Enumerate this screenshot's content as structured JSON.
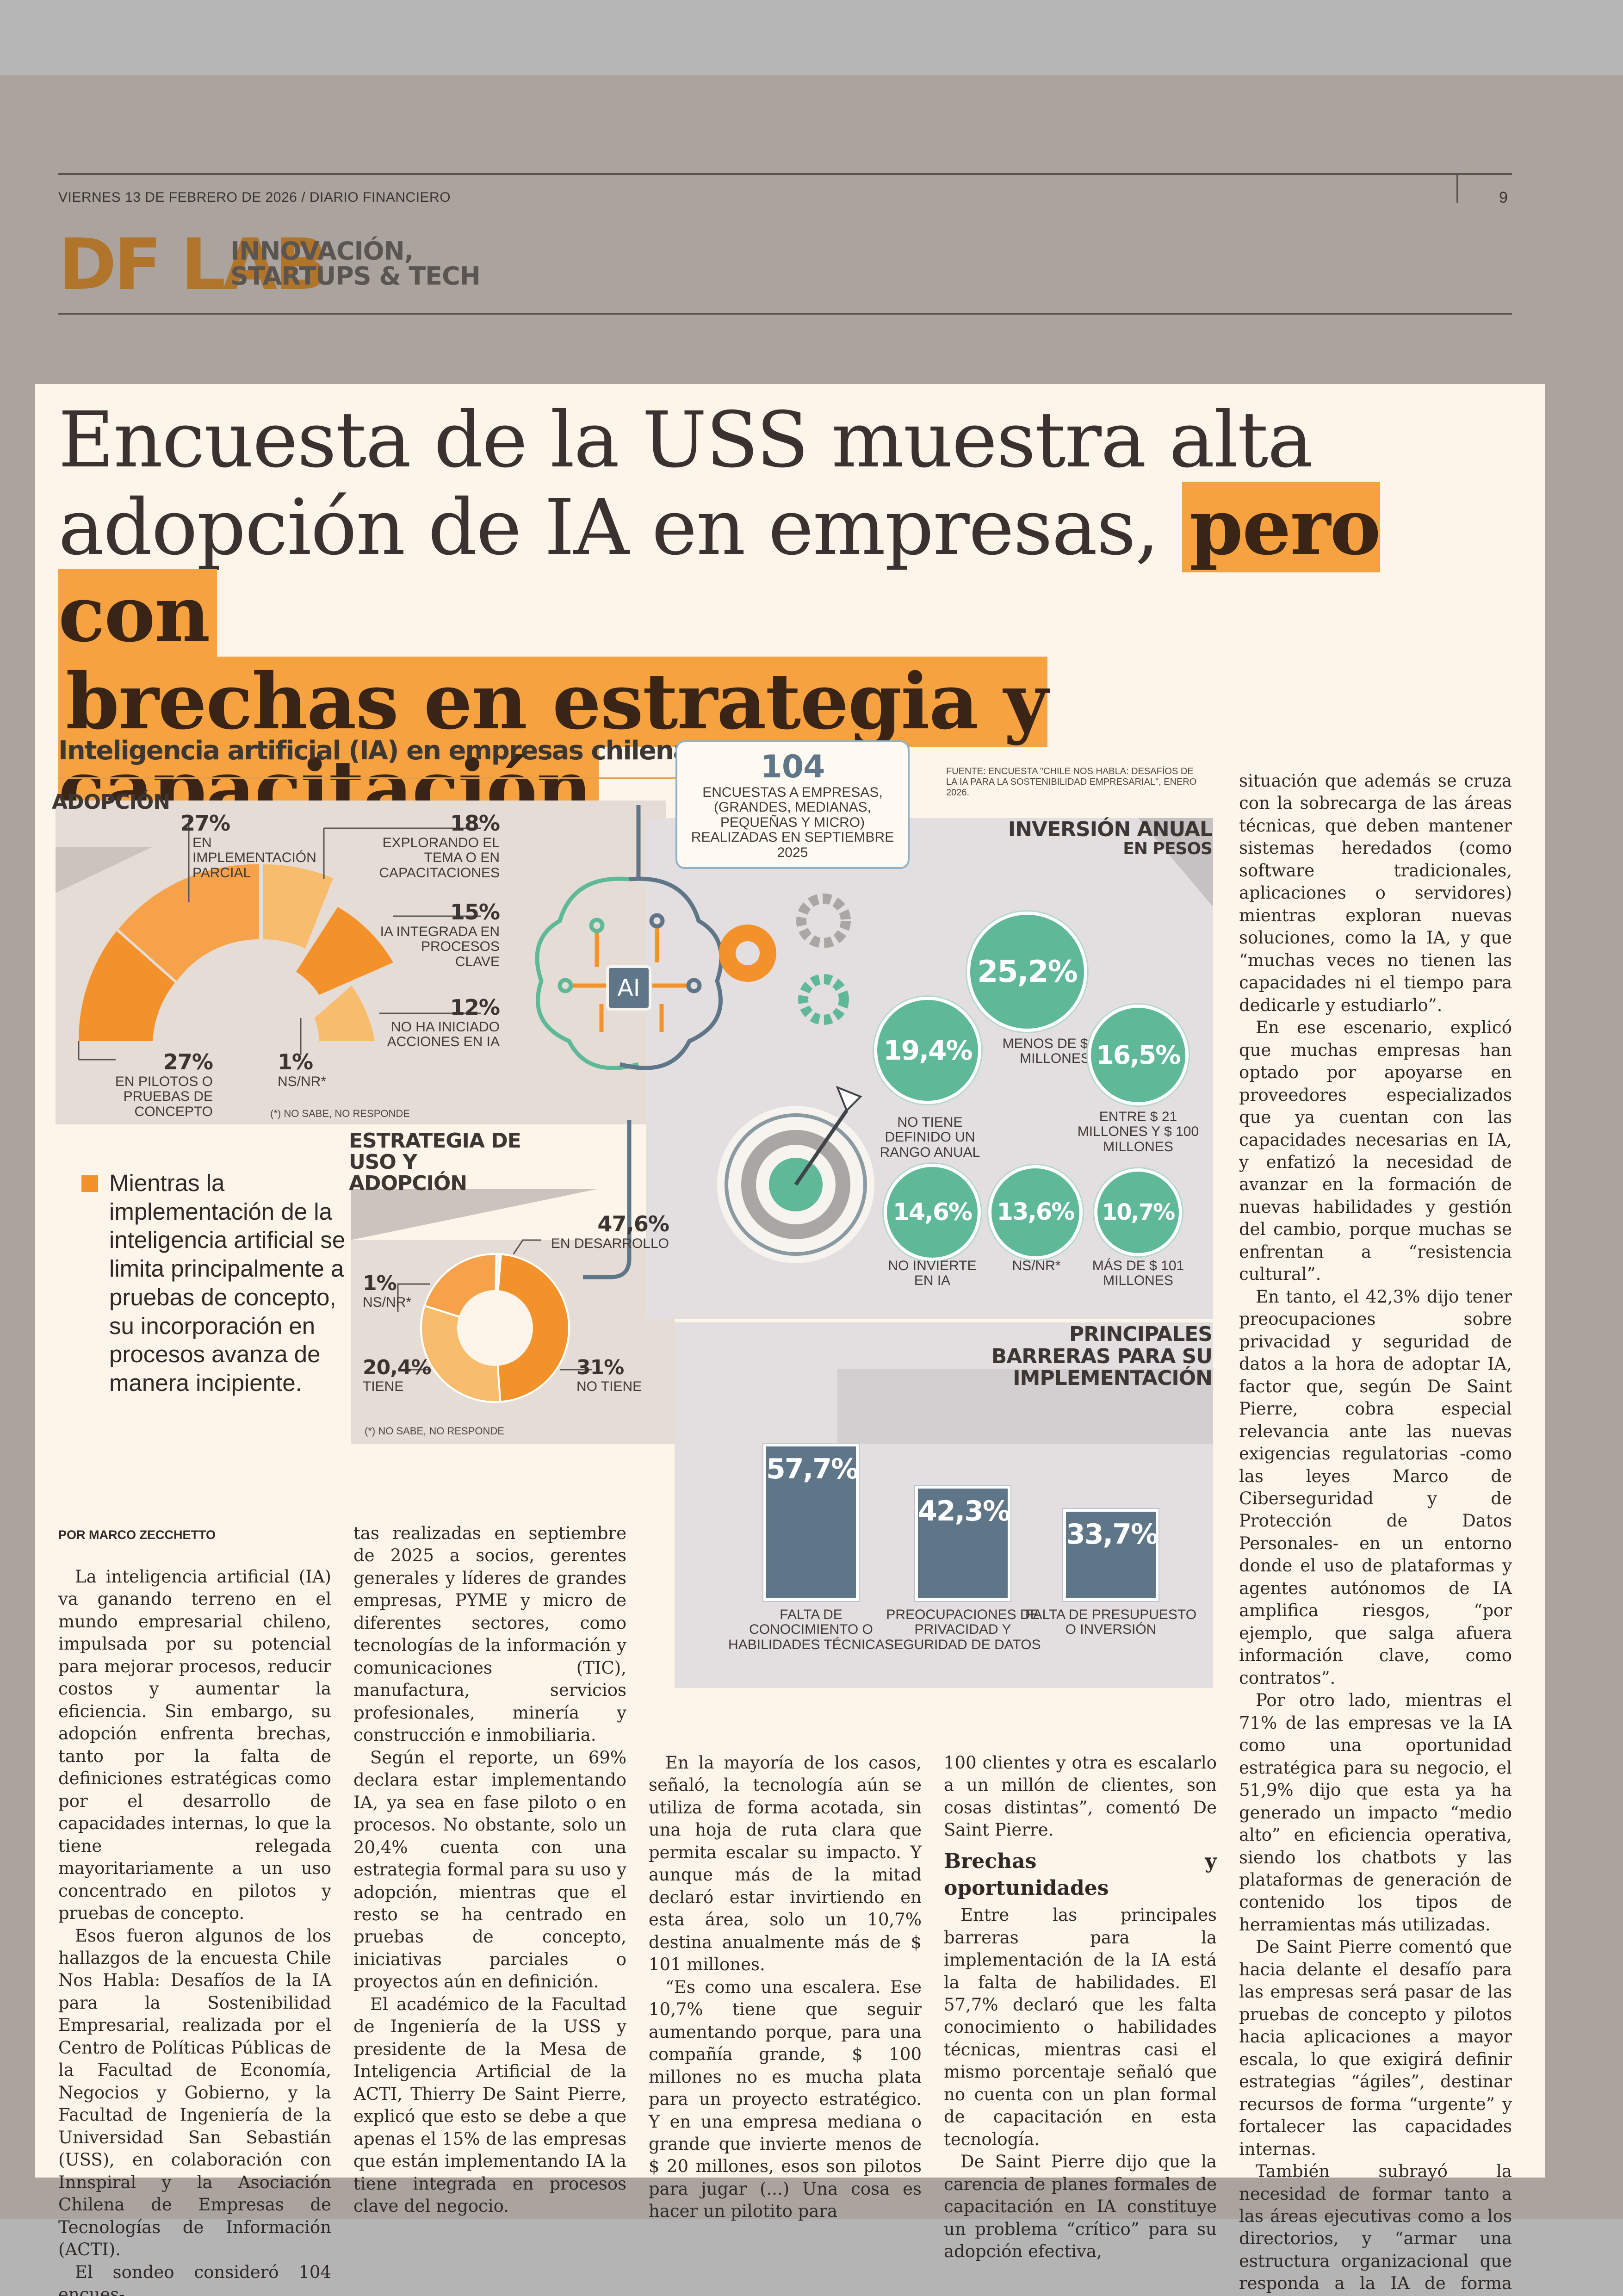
{
  "header": {
    "dateline": "VIERNES 13 DE FEBRERO DE 2026 / DIARIO FINANCIERO",
    "page_number": "9",
    "brand": "DF LAB",
    "section_line1": "INNOVACIÓN,",
    "section_line2": "STARTUPS & TECH"
  },
  "headline": {
    "part1": "Encuesta de la USS muestra alta adopción de IA en empresas,",
    "highlight1": "pero con",
    "highlight2": "brechas en estrategia y capacitación"
  },
  "figure": {
    "title": "Inteligencia artificial (IA) en empresas chilenas",
    "survey_count": "104",
    "survey_desc": "ENCUESTAS A EMPRESAS, (GRANDES, MEDIANAS, PEQUEÑAS Y MICRO) REALIZADAS EN SEPTIEMBRE 2025",
    "source": "FUENTE: ENCUESTA \"CHILE NOS HABLA: DESAFÍOS DE LA IA PARA LA SOSTENIBILIDAD EMPRESARIAL\", ENERO 2026.",
    "ai_chip": "AI",
    "colors": {
      "orange": "#f3922b",
      "teal": "#5fb999",
      "slate": "#5e7687",
      "highlight": "#f6a241"
    }
  },
  "chart_data": [
    {
      "type": "pie",
      "title": "ADOPCIÓN",
      "style": "semicircle",
      "labels": [
        "EN PILOTOS O PRUEBAS DE CONCEPTO",
        "EN IMPLEMENTACIÓN PARCIAL",
        "EXPLORANDO EL TEMA O EN CAPACITACIONES",
        "IA INTEGRADA EN PROCESOS CLAVE",
        "NO HA INICIADO ACCIONES EN IA",
        "NS/NR*"
      ],
      "values": [
        27,
        27,
        18,
        15,
        12,
        1
      ],
      "value_labels": [
        "27%",
        "27%",
        "18%",
        "15%",
        "12%",
        "1%"
      ],
      "footnote": "(*) NO SABE, NO RESPONDE"
    },
    {
      "type": "pie",
      "title": "ESTRATEGIA DE USO Y ADOPCIÓN",
      "style": "donut",
      "labels": [
        "EN DESARROLLO",
        "NO TIENE",
        "TIENE",
        "NS/NR*"
      ],
      "values": [
        47.6,
        31,
        20.4,
        1
      ],
      "value_labels": [
        "47,6%",
        "31%",
        "20,4%",
        "1%"
      ],
      "footnote": "(*) NO SABE, NO RESPONDE"
    },
    {
      "type": "scatter",
      "style": "bubbles",
      "title": "INVERSIÓN ANUAL",
      "subtitle": "EN PESOS",
      "labels": [
        "MENOS DE $ 20 MILLONES",
        "NO TIENE DEFINIDO UN RANGO ANUAL",
        "ENTRE $ 21 MILLONES Y $ 100 MILLONES",
        "NO INVIERTE EN IA",
        "NS/NR*",
        "MÁS DE $ 101 MILLONES"
      ],
      "values": [
        25.2,
        19.4,
        16.5,
        14.6,
        13.6,
        10.7
      ],
      "value_labels": [
        "25,2%",
        "19,4%",
        "16,5%",
        "14,6%",
        "13,6%",
        "10,7%"
      ]
    },
    {
      "type": "bar",
      "title": "PRINCIPALES BARRERAS PARA SU IMPLEMENTACIÓN",
      "categories": [
        "FALTA DE CONOCIMIENTO O HABILIDADES TÉCNICAS",
        "PREOCUPACIONES DE PRIVACIDAD Y SEGURIDAD DE DATOS",
        "FALTA DE PRESUPUESTO O INVERSIÓN"
      ],
      "values": [
        57.7,
        42.3,
        33.7
      ],
      "value_labels": [
        "57,7%",
        "42,3%",
        "33,7%"
      ],
      "ylim": [
        0,
        60
      ]
    }
  ],
  "pull_quote": "Mientras la implementación de la inteligencia artificial se limita principalmente a pruebas de concepto, su incorporación en procesos avanza de manera incipiente.",
  "byline": "POR MARCO ZECCHETTO",
  "body": {
    "col1": [
      "La inteligencia artificial (IA) va ganando terreno en el mundo empresarial chileno, impulsada por su potencial para mejorar procesos, reducir costos y aumentar la eficiencia. Sin embargo, su adopción enfrenta brechas, tanto por la falta de definiciones estratégicas como por el desarrollo de capacidades internas, lo que la tiene relegada mayoritariamente a un uso concentrado en pilotos y pruebas de concepto.",
      "Esos fueron algunos de los hallazgos de la encuesta Chile Nos Habla: Desafíos de la IA para la Sostenibilidad Empresarial, realizada por el Centro de Políticas Públicas de la Facultad de Economía, Negocios y Gobierno, y la Facultad de Ingeniería de la Universidad San Sebastián (USS), en colaboración con Innspiral y la Asociación Chilena de Empresas de Tecnologías de Información (ACTI).",
      "El sondeo consideró 104 encues-"
    ],
    "col2": [
      "tas realizadas en septiembre de 2025 a socios, gerentes generales y líderes de grandes empresas, PYME y micro de diferentes sectores, como tecnologías de la información y comunicaciones (TIC), manufactura, servicios profesionales, minería y construcción e inmobiliaria.",
      "Según el reporte, un 69% declara estar implementando IA, ya sea en fase piloto o en procesos. No obstante, solo un 20,4% cuenta con una estrategia formal para su uso y adopción, mientras que el resto se ha centrado en pruebas de concepto, iniciativas parciales o proyectos aún en definición.",
      "El académico de la Facultad de Ingeniería de la USS y presidente de la Mesa de Inteligencia Artificial de la ACTI, Thierry De Saint Pierre, explicó que esto se debe a que apenas el 15% de las empresas que están implementando IA la tiene integrada en procesos clave del negocio."
    ],
    "col3": [
      "En la mayoría de los casos, señaló, la tecnología aún se utiliza de forma acotada, sin una hoja de ruta clara que permita escalar su impacto. Y aunque más de la mitad declaró estar invirtiendo en esta área, solo un 10,7% destina anualmente más de $ 101 millones.",
      "“Es como una escalera. Ese 10,7% tiene que seguir aumentando porque, para una compañía grande, $ 100 millones no es mucha plata para un proyecto estratégico. Y en una empresa mediana o grande que invierte menos de $ 20 millones, esos son pilotos para jugar (...) Una cosa es hacer un pilotito para"
    ],
    "col4_intro": "100 clientes y otra es escalarlo a un millón de clientes, son cosas distintas”, comentó De Saint Pierre.",
    "col4_heading": "Brechas y oportunidades",
    "col4": [
      "Entre las principales barreras para la implementación de la IA está la falta de habilidades. El 57,7% declaró que les falta conocimiento o habilidades técnicas, mientras casi el mismo porcentaje señaló que no cuenta con un plan formal de capacitación en esta tecnología.",
      "De Saint Pierre dijo que la carencia de planes formales de capacitación en IA constituye un problema “crítico” para su adopción efectiva,"
    ],
    "col5_intro": "situación que además se cruza con la sobrecarga de las áreas técnicas, que deben mantener sistemas heredados (como software tradicionales, aplicaciones o servidores) mientras exploran nuevas soluciones, como la IA, y que “muchas veces no tienen las capacidades ni el tiempo para dedicarle y estudiarlo”.",
    "col5": [
      "En ese escenario, explicó que muchas empresas han optado por apoyarse en proveedores especializados que ya cuentan con las capacidades necesarias en IA, y enfatizó la necesidad de avanzar en la formación de nuevas habilidades y gestión del cambio, porque muchas se enfrentan a “resistencia cultural”.",
      "En tanto, el 42,3% dijo tener preocupaciones sobre privacidad y seguridad de datos a la hora de adoptar IA, factor que, según De Saint Pierre, cobra especial relevancia ante las nuevas exigencias regulatorias -como las leyes Marco de Ciberseguridad y de Protección de Datos Personales- en un entorno donde el uso de plataformas y agentes autónomos de IA amplifica riesgos, “por ejemplo, que salga afuera información clave, como contratos”.",
      "Por otro lado, mientras el 71% de las empresas ve la IA como una oportunidad estratégica para su negocio, el 51,9% dijo que esta ya ha generado un impacto “medio alto” en eficiencia operativa, siendo los chatbots y las plataformas de generación de contenido los tipos de herramientas más utilizadas.",
      "De Saint Pierre comentó que hacia delante el desafío para las empresas será pasar de las pruebas de concepto y pilotos hacia aplicaciones a mayor escala, lo que exigirá definir estrategias “ágiles”, destinar recursos de forma “urgente” y fortalecer las capacidades internas.",
      "También subrayó la necesidad de formar tanto a las áreas ejecutivas como a los directorios, y “armar una estructura organizacional que responda a la IA de forma transversal para todos los colaboradores (...) Si no tu competencia lo va a hacer y te va a ir dejando fuera del negocio”."
    ]
  }
}
